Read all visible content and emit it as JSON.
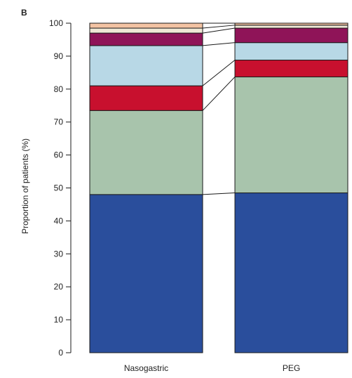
{
  "panel_label": "B",
  "chart_data": {
    "type": "bar",
    "stacked": true,
    "categories": [
      "Nasogastric",
      "PEG"
    ],
    "ylabel": "Proportion of patients (%)",
    "xlabel": "",
    "ylim": [
      0,
      100
    ],
    "yticks": [
      0,
      10,
      20,
      30,
      40,
      50,
      60,
      70,
      80,
      90,
      100
    ],
    "grid": false,
    "connector_lines": true,
    "series": [
      {
        "color": "#2a4e9c",
        "values": [
          48.0,
          48.5
        ]
      },
      {
        "color": "#a8c4ac",
        "values": [
          25.5,
          35.2
        ]
      },
      {
        "color": "#c8102e",
        "values": [
          7.5,
          5.1
        ]
      },
      {
        "color": "#b8d8e6",
        "values": [
          12.2,
          5.3
        ]
      },
      {
        "color": "#8f1458",
        "values": [
          3.8,
          4.4
        ]
      },
      {
        "color": "#efe8d6",
        "values": [
          1.5,
          0.9
        ]
      },
      {
        "color": "#f3c3a3",
        "values": [
          1.5,
          0.6
        ]
      }
    ]
  }
}
